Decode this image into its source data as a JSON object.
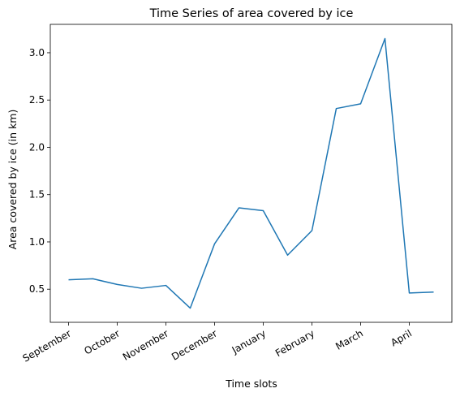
{
  "chart_data": {
    "type": "line",
    "title": "Time Series of area covered by ice",
    "xlabel": "Time slots",
    "ylabel": "Area covered by ice (in km)",
    "x": [
      0,
      1,
      2,
      3,
      4,
      5,
      6,
      7,
      8,
      9,
      10,
      11,
      12,
      13,
      14,
      15
    ],
    "xtick_positions": [
      0,
      2,
      4,
      6,
      8,
      10,
      12,
      14
    ],
    "xtick_labels": [
      "September",
      "October",
      "November",
      "December",
      "January",
      "February",
      "March",
      "April"
    ],
    "ytick_values": [
      0.5,
      1.0,
      1.5,
      2.0,
      2.5,
      3.0
    ],
    "ytick_labels": [
      "0.5",
      "1.0",
      "1.5",
      "2.0",
      "2.5",
      "3.0"
    ],
    "ylim": [
      0.15,
      3.3
    ],
    "xlim": [
      -0.75,
      15.75
    ],
    "grid": false,
    "series": [
      {
        "color": "#1f77b4",
        "values": [
          0.6,
          0.61,
          0.55,
          0.51,
          0.54,
          0.3,
          0.98,
          1.36,
          1.33,
          0.86,
          1.12,
          2.41,
          2.46,
          3.15,
          0.46,
          0.47
        ]
      }
    ]
  }
}
